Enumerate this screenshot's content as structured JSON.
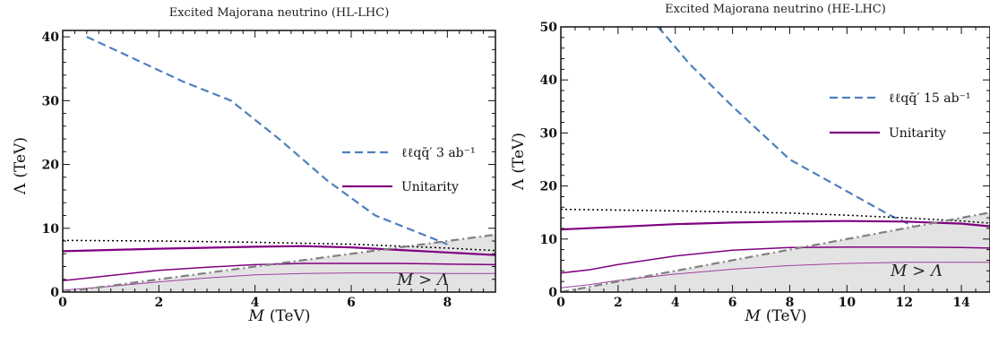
{
  "colors": {
    "dashed": "#4f7fbf",
    "unitarity": "#800080",
    "unitarity_light": "#a040a0",
    "dotted": "#000000",
    "diag": "#808080",
    "shade": "#e3e3e3"
  },
  "chart_data": [
    {
      "type": "line",
      "title": "Excited Majorana neutrino (HL-LHC)",
      "xlabel_var": "M",
      "xlabel_unit": "(TeV)",
      "ylabel_var": "Λ",
      "ylabel_unit": "(TeV)",
      "xlim": [
        0,
        9
      ],
      "ylim": [
        0,
        41
      ],
      "xticks": [
        0,
        2,
        4,
        6,
        8
      ],
      "yticks": [
        0,
        10,
        20,
        30,
        40
      ],
      "grid": false,
      "legend_position": "right-middle",
      "region_label": "M > Λ",
      "series": [
        {
          "name": "ℓℓqq̄′ 3 ab⁻¹",
          "style": "dashed",
          "legend": true,
          "x": [
            0.5,
            1.5,
            2.5,
            3.5,
            4.5,
            5.5,
            6.5,
            7.5,
            8.0
          ],
          "y": [
            40,
            36.5,
            33,
            30,
            24,
            17.5,
            12,
            9,
            7.5
          ]
        },
        {
          "name": "Unitarity",
          "style": "solid-thick",
          "legend": true,
          "x": [
            0,
            2,
            4,
            5,
            6,
            7,
            8,
            9
          ],
          "y": [
            6.4,
            6.8,
            7.1,
            7.2,
            7.0,
            6.6,
            6.2,
            5.8
          ]
        },
        {
          "style": "solid",
          "legend": false,
          "x": [
            0,
            1,
            2,
            3,
            4,
            5,
            6,
            7,
            8,
            9
          ],
          "y": [
            1.8,
            2.6,
            3.4,
            3.9,
            4.3,
            4.5,
            4.5,
            4.5,
            4.4,
            4.3
          ]
        },
        {
          "style": "solid-thin",
          "legend": false,
          "x": [
            0,
            1,
            2,
            3,
            4,
            5,
            6,
            7,
            8,
            9
          ],
          "y": [
            0.3,
            0.9,
            1.6,
            2.2,
            2.7,
            2.9,
            3.0,
            3.0,
            2.9,
            2.9
          ]
        },
        {
          "style": "dotted",
          "legend": false,
          "x": [
            0,
            2,
            4,
            6,
            7,
            8,
            9
          ],
          "y": [
            8.1,
            8.0,
            7.8,
            7.5,
            7.2,
            6.9,
            6.5
          ]
        },
        {
          "style": "dashdot-diagonal",
          "legend": false,
          "x": [
            0,
            9
          ],
          "y": [
            0,
            9
          ]
        }
      ]
    },
    {
      "type": "line",
      "title": "Excited Majorana neutrino (HE-LHC)",
      "xlabel_var": "M",
      "xlabel_unit": "(TeV)",
      "ylabel_var": "Λ",
      "ylabel_unit": "(TeV)",
      "xlim": [
        0,
        15
      ],
      "ylim": [
        0,
        50
      ],
      "xticks": [
        0,
        2,
        4,
        6,
        8,
        10,
        12,
        14
      ],
      "yticks": [
        0,
        10,
        20,
        30,
        40,
        50
      ],
      "grid": false,
      "legend_position": "right-top",
      "region_label": "M > Λ",
      "series": [
        {
          "name": "ℓℓqq̄′ 15 ab⁻¹",
          "style": "dashed",
          "legend": true,
          "x": [
            3.4,
            4.5,
            6,
            8,
            10,
            11.5,
            12.3
          ],
          "y": [
            50,
            43,
            35,
            25,
            19,
            14.5,
            12.5
          ]
        },
        {
          "name": "Unitarity",
          "style": "solid-thick",
          "legend": true,
          "x": [
            0,
            2,
            4,
            6,
            8,
            10,
            12,
            14,
            15
          ],
          "y": [
            11.8,
            12.3,
            12.8,
            13.1,
            13.3,
            13.4,
            13.3,
            12.9,
            12.4
          ]
        },
        {
          "style": "solid",
          "legend": false,
          "x": [
            0,
            1,
            2,
            4,
            6,
            8,
            10,
            12,
            14,
            15
          ],
          "y": [
            3.6,
            4.2,
            5.2,
            6.8,
            7.9,
            8.4,
            8.5,
            8.5,
            8.4,
            8.3
          ]
        },
        {
          "style": "solid-thin",
          "legend": false,
          "x": [
            0,
            1,
            2,
            4,
            6,
            8,
            10,
            12,
            14,
            15
          ],
          "y": [
            0.8,
            1.4,
            2.2,
            3.4,
            4.3,
            5.0,
            5.4,
            5.6,
            5.6,
            5.6
          ]
        },
        {
          "style": "dotted",
          "legend": false,
          "x": [
            0,
            4,
            8,
            10,
            12,
            14,
            15
          ],
          "y": [
            15.6,
            15.3,
            14.9,
            14.5,
            14.0,
            13.4,
            13.0
          ]
        },
        {
          "style": "dashdot-diagonal",
          "legend": false,
          "x": [
            0,
            15
          ],
          "y": [
            0,
            15
          ]
        }
      ]
    }
  ]
}
